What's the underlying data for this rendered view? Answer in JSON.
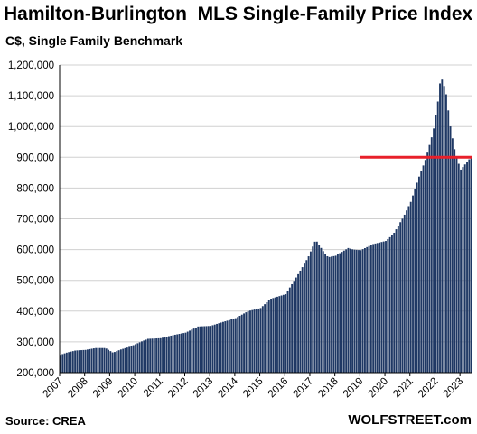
{
  "chart_data": {
    "type": "bar",
    "title": "Hamilton-Burlington  MLS Single-Family Price Index",
    "subtitle": "C$, Single Family Benchmark",
    "source": "Source: CREA",
    "brand": "WOLFSTREET.com",
    "ylim": [
      200000,
      1200000
    ],
    "y_ticks": [
      "200,000",
      "300,000",
      "400,000",
      "500,000",
      "600,000",
      "700,000",
      "800,000",
      "900,000",
      "1,000,000",
      "1,100,000",
      "1,200,000"
    ],
    "x_ticks": [
      "2007",
      "2008",
      "2009",
      "2010",
      "2011",
      "2012",
      "2013",
      "2014",
      "2015",
      "2016",
      "2017",
      "2018",
      "2019",
      "2020",
      "2021",
      "2022",
      "2023"
    ],
    "x_start": 2007.0,
    "x_end": 2023.5,
    "bar_color": "#1f3864",
    "reference_line": {
      "value": 900000,
      "from": 2019.0,
      "to": 2023.5,
      "color": "#e8202a"
    },
    "anchors": [
      [
        2007.0,
        258000
      ],
      [
        2007.25,
        265000
      ],
      [
        2007.6,
        272000
      ],
      [
        2008.0,
        274000
      ],
      [
        2008.4,
        280000
      ],
      [
        2008.8,
        280000
      ],
      [
        2009.1,
        265000
      ],
      [
        2009.4,
        275000
      ],
      [
        2009.8,
        285000
      ],
      [
        2010.2,
        300000
      ],
      [
        2010.5,
        310000
      ],
      [
        2011.0,
        312000
      ],
      [
        2011.5,
        322000
      ],
      [
        2012.0,
        330000
      ],
      [
        2012.5,
        350000
      ],
      [
        2013.0,
        352000
      ],
      [
        2013.5,
        365000
      ],
      [
        2014.0,
        377000
      ],
      [
        2014.5,
        400000
      ],
      [
        2015.0,
        410000
      ],
      [
        2015.4,
        440000
      ],
      [
        2016.0,
        455000
      ],
      [
        2016.5,
        520000
      ],
      [
        2016.9,
        575000
      ],
      [
        2017.2,
        632000
      ],
      [
        2017.5,
        595000
      ],
      [
        2017.7,
        575000
      ],
      [
        2018.0,
        580000
      ],
      [
        2018.5,
        605000
      ],
      [
        2018.7,
        600000
      ],
      [
        2019.0,
        598000
      ],
      [
        2019.5,
        618000
      ],
      [
        2020.0,
        628000
      ],
      [
        2020.3,
        650000
      ],
      [
        2020.7,
        705000
      ],
      [
        2021.0,
        755000
      ],
      [
        2021.3,
        830000
      ],
      [
        2021.6,
        895000
      ],
      [
        2021.9,
        985000
      ],
      [
        2022.1,
        1090000
      ],
      [
        2022.2,
        1165000
      ],
      [
        2022.4,
        1115000
      ],
      [
        2022.6,
        990000
      ],
      [
        2022.8,
        905000
      ],
      [
        2023.0,
        860000
      ],
      [
        2023.2,
        880000
      ],
      [
        2023.4,
        900000
      ]
    ]
  }
}
